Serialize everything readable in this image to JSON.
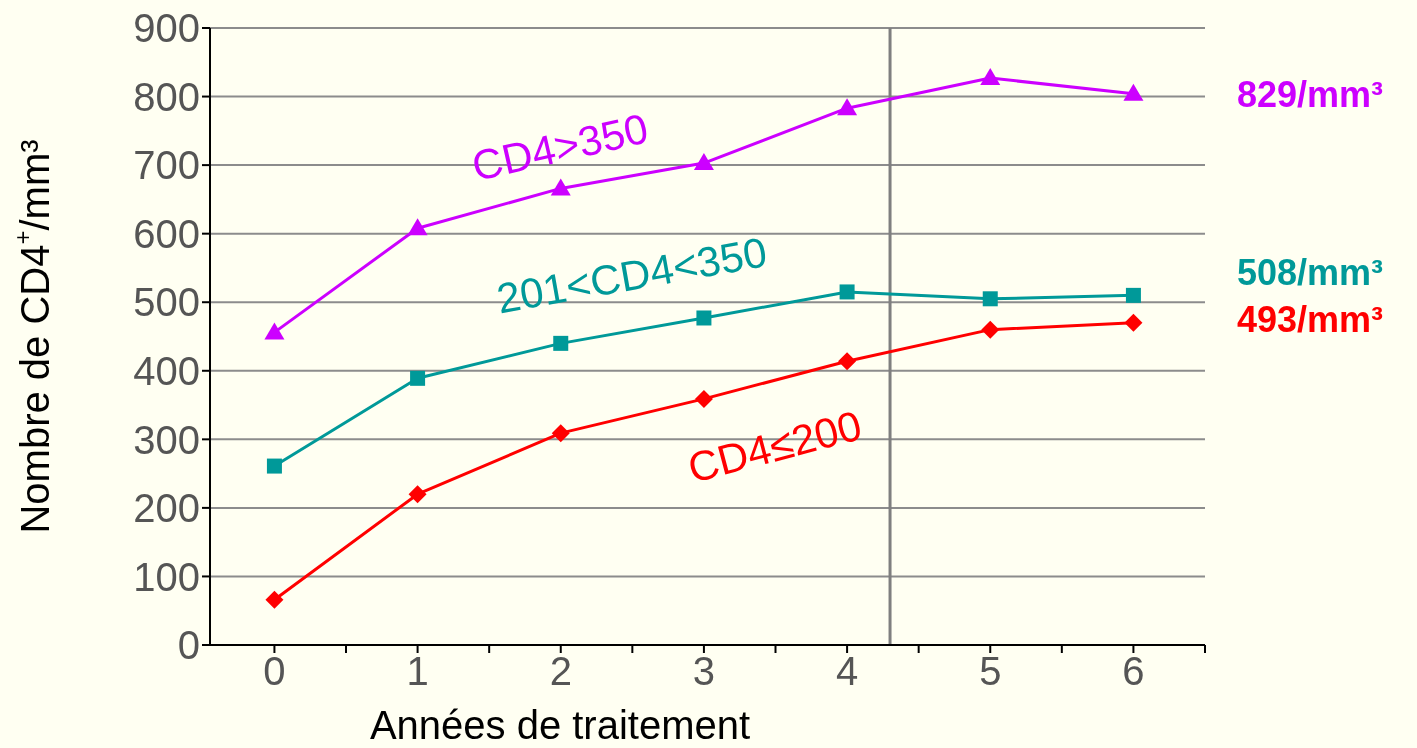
{
  "chart_data": {
    "type": "line",
    "xlabel": "Années de traitement",
    "ylabel": "Nombre de CD4$^{+}$/mm³",
    "x": [
      0,
      1,
      2,
      3,
      4,
      5,
      6
    ],
    "xlim": [
      -0.45,
      6.5
    ],
    "xticks": [
      0,
      {
        "value": 0.5,
        "label": null
      },
      1,
      {
        "value": 1.5,
        "label": null
      },
      2,
      {
        "value": 2.5,
        "label": null
      },
      3,
      {
        "value": 3.5,
        "label": null
      },
      4,
      {
        "value": 4.5,
        "label": null
      },
      5,
      {
        "value": 5.5,
        "label": null
      },
      6,
      {
        "value": 6.5,
        "label": null
      }
    ],
    "ylim": [
      0,
      900
    ],
    "yticks": [
      0,
      100,
      200,
      300,
      400,
      500,
      600,
      700,
      800,
      900
    ],
    "grid": "y",
    "legend": false,
    "line_style": "solid",
    "ref_lines": [
      {
        "axis": "x",
        "value": 4.3,
        "label": null,
        "color": "#7f7f7f"
      }
    ],
    "series": [
      {
        "name": "CD4>350",
        "color": "#cc00ff",
        "marker": "triangle",
        "values": [
          456,
          608,
          666,
          703,
          783,
          827,
          804
        ]
      },
      {
        "name": "201<CD4<350",
        "color": "#009999",
        "marker": "square",
        "values": [
          261,
          389,
          440,
          477,
          515,
          505,
          510
        ]
      },
      {
        "name": "CD4≤200",
        "color": "#ff0000",
        "marker": "diamond",
        "values": [
          66,
          220,
          309,
          359,
          414,
          460,
          470
        ]
      }
    ],
    "annotations": [
      "829/mm³",
      "508/mm³",
      "493/mm³"
    ]
  }
}
